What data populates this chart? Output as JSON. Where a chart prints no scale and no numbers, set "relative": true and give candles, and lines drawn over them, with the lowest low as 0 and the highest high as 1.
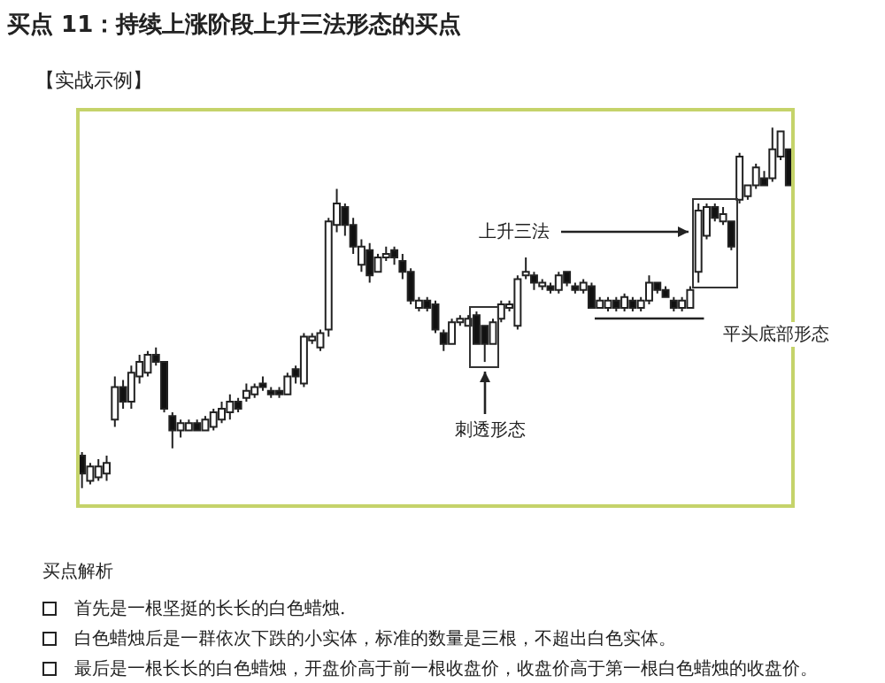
{
  "chart_data": {
    "type": "candlestick",
    "title": "买点 11：持续上涨阶段上升三法形态的买点",
    "subtitle": "【实战示例】",
    "relative": true,
    "categories": [
      null,
      null,
      null,
      null,
      null,
      null,
      null,
      null,
      null,
      null,
      null,
      null,
      null,
      null,
      null,
      null,
      null,
      null,
      null,
      null,
      null,
      null,
      null,
      null,
      null,
      null,
      null,
      null,
      null,
      null,
      null,
      null,
      null,
      null,
      null,
      null,
      null,
      null,
      null,
      null,
      null,
      null,
      null,
      null,
      null,
      null,
      null,
      null,
      null,
      null,
      null,
      null,
      null,
      null,
      null,
      null,
      null,
      null,
      null,
      null,
      null,
      null,
      null,
      null,
      null,
      null,
      null,
      null,
      null,
      null,
      null,
      null,
      null,
      null,
      null,
      null,
      null,
      null,
      null,
      null,
      null,
      null,
      null,
      null,
      null,
      null,
      null
    ],
    "ohlc": [
      [
        0.09,
        0.1,
        0,
        0.04
      ],
      [
        0.02,
        0.07,
        0.01,
        0.06
      ],
      [
        0.03,
        0.08,
        0.02,
        0.06
      ],
      [
        0.04,
        0.09,
        0.02,
        0.07
      ],
      [
        0.19,
        0.31,
        0.17,
        0.28
      ],
      [
        0.28,
        0.3,
        0.22,
        0.24
      ],
      [
        0.24,
        0.34,
        0.22,
        0.32
      ],
      [
        0.31,
        0.37,
        0.29,
        0.35
      ],
      [
        0.32,
        0.38,
        0.31,
        0.37
      ],
      [
        0.37,
        0.39,
        0.34,
        0.35
      ],
      [
        0.35,
        0.35,
        0.21,
        0.22
      ],
      [
        0.2,
        0.21,
        0.11,
        0.16
      ],
      [
        0.16,
        0.19,
        0.14,
        0.18
      ],
      [
        0.16,
        0.19,
        0.16,
        0.18
      ],
      [
        0.18,
        0.19,
        0.16,
        0.16
      ],
      [
        0.16,
        0.2,
        0.16,
        0.19
      ],
      [
        0.17,
        0.22,
        0.16,
        0.21
      ],
      [
        0.19,
        0.24,
        0.18,
        0.22
      ],
      [
        0.21,
        0.26,
        0.19,
        0.24
      ],
      [
        0.24,
        0.25,
        0.21,
        0.22
      ],
      [
        0.25,
        0.29,
        0.24,
        0.27
      ],
      [
        0.26,
        0.29,
        0.25,
        0.28
      ],
      [
        0.29,
        0.31,
        0.27,
        0.28
      ],
      [
        0.27,
        0.28,
        0.25,
        0.26
      ],
      [
        0.27,
        0.28,
        0.25,
        0.26
      ],
      [
        0.26,
        0.32,
        0.26,
        0.31
      ],
      [
        0.33,
        0.34,
        0.29,
        0.31
      ],
      [
        0.29,
        0.43,
        0.28,
        0.42
      ],
      [
        0.41,
        0.43,
        0.4,
        0.42
      ],
      [
        0.39,
        0.44,
        0.38,
        0.43
      ],
      [
        0.44,
        0.75,
        0.42,
        0.74
      ],
      [
        0.73,
        0.83,
        0.71,
        0.79
      ],
      [
        0.78,
        0.79,
        0.7,
        0.73
      ],
      [
        0.73,
        0.75,
        0.65,
        0.67
      ],
      [
        0.62,
        0.69,
        0.6,
        0.67
      ],
      [
        0.66,
        0.68,
        0.57,
        0.59
      ],
      [
        0.6,
        0.65,
        0.6,
        0.64
      ],
      [
        0.64,
        0.67,
        0.63,
        0.65
      ],
      [
        0.66,
        0.67,
        0.62,
        0.64
      ],
      [
        0.63,
        0.65,
        0.58,
        0.6
      ],
      [
        0.6,
        0.61,
        0.51,
        0.52
      ],
      [
        0.5,
        0.53,
        0.49,
        0.52
      ],
      [
        0.52,
        0.53,
        0.49,
        0.5
      ],
      [
        0.51,
        0.52,
        0.43,
        0.44
      ],
      [
        0.43,
        0.44,
        0.38,
        0.4
      ],
      [
        0.4,
        0.47,
        0.4,
        0.46
      ],
      [
        0.46,
        0.48,
        0.45,
        0.47
      ],
      [
        0.45,
        0.48,
        0.45,
        0.47
      ],
      [
        0.48,
        0.49,
        0.4,
        0.4
      ],
      [
        0.45,
        0.45,
        0.35,
        0.4
      ],
      [
        0.4,
        0.47,
        0.4,
        0.46
      ],
      [
        0.47,
        0.52,
        0.46,
        0.51
      ],
      [
        0.5,
        0.52,
        0.49,
        0.51
      ],
      [
        0.45,
        0.59,
        0.44,
        0.58
      ],
      [
        0.59,
        0.64,
        0.58,
        0.6
      ],
      [
        0.59,
        0.6,
        0.55,
        0.57
      ],
      [
        0.56,
        0.58,
        0.55,
        0.57
      ],
      [
        0.56,
        0.57,
        0.54,
        0.55
      ],
      [
        0.55,
        0.6,
        0.54,
        0.59
      ],
      [
        0.6,
        0.6,
        0.56,
        0.57
      ],
      [
        0.56,
        0.57,
        0.54,
        0.55
      ],
      [
        0.55,
        0.58,
        0.54,
        0.57
      ],
      [
        0.56,
        0.57,
        0.5,
        0.5
      ],
      [
        0.5,
        0.53,
        0.5,
        0.52
      ],
      [
        0.5,
        0.53,
        0.49,
        0.52
      ],
      [
        0.52,
        0.53,
        0.49,
        0.5
      ],
      [
        0.5,
        0.54,
        0.49,
        0.53
      ],
      [
        0.52,
        0.53,
        0.49,
        0.5
      ],
      [
        0.5,
        0.53,
        0.49,
        0.52
      ],
      [
        0.52,
        0.59,
        0.51,
        0.57
      ],
      [
        0.57,
        0.57,
        0.54,
        0.55
      ],
      [
        0.55,
        0.56,
        0.53,
        0.53
      ],
      [
        0.52,
        0.53,
        0.49,
        0.5
      ],
      [
        0.5,
        0.53,
        0.49,
        0.52
      ],
      [
        0.5,
        0.56,
        0.5,
        0.55
      ],
      [
        0.6,
        0.79,
        0.57,
        0.77
      ],
      [
        0.7,
        0.79,
        0.69,
        0.78
      ],
      [
        0.78,
        0.79,
        0.74,
        0.75
      ],
      [
        0.74,
        0.78,
        0.73,
        0.76
      ],
      [
        0.74,
        0.74,
        0.66,
        0.67
      ],
      [
        0.8,
        0.93,
        0.79,
        0.92
      ],
      [
        0.81,
        0.84,
        0.8,
        0.84
      ],
      [
        0.84,
        0.9,
        0.83,
        0.89
      ],
      [
        0.86,
        0.88,
        0.84,
        0.84
      ],
      [
        0.86,
        1.0,
        0.85,
        0.94
      ],
      [
        0.92,
        0.99,
        0.91,
        0.99
      ],
      [
        0.94,
        0.94,
        0.84,
        0.84
      ]
    ],
    "annotations": [
      "上升三法",
      "刺透形态",
      "平头底部形态",
      "买点解析",
      "首先是一根坚挺的长长的白色蜡烛.",
      "白色蜡烛后是一群依次下跌的小实体，标准的数量是三根，不超出白色实体。",
      "最后是一根长长的白色蜡烛，开盘价高于前一根收盘价，收盘价高于第一根白色蜡烛的收盘价。"
    ]
  }
}
